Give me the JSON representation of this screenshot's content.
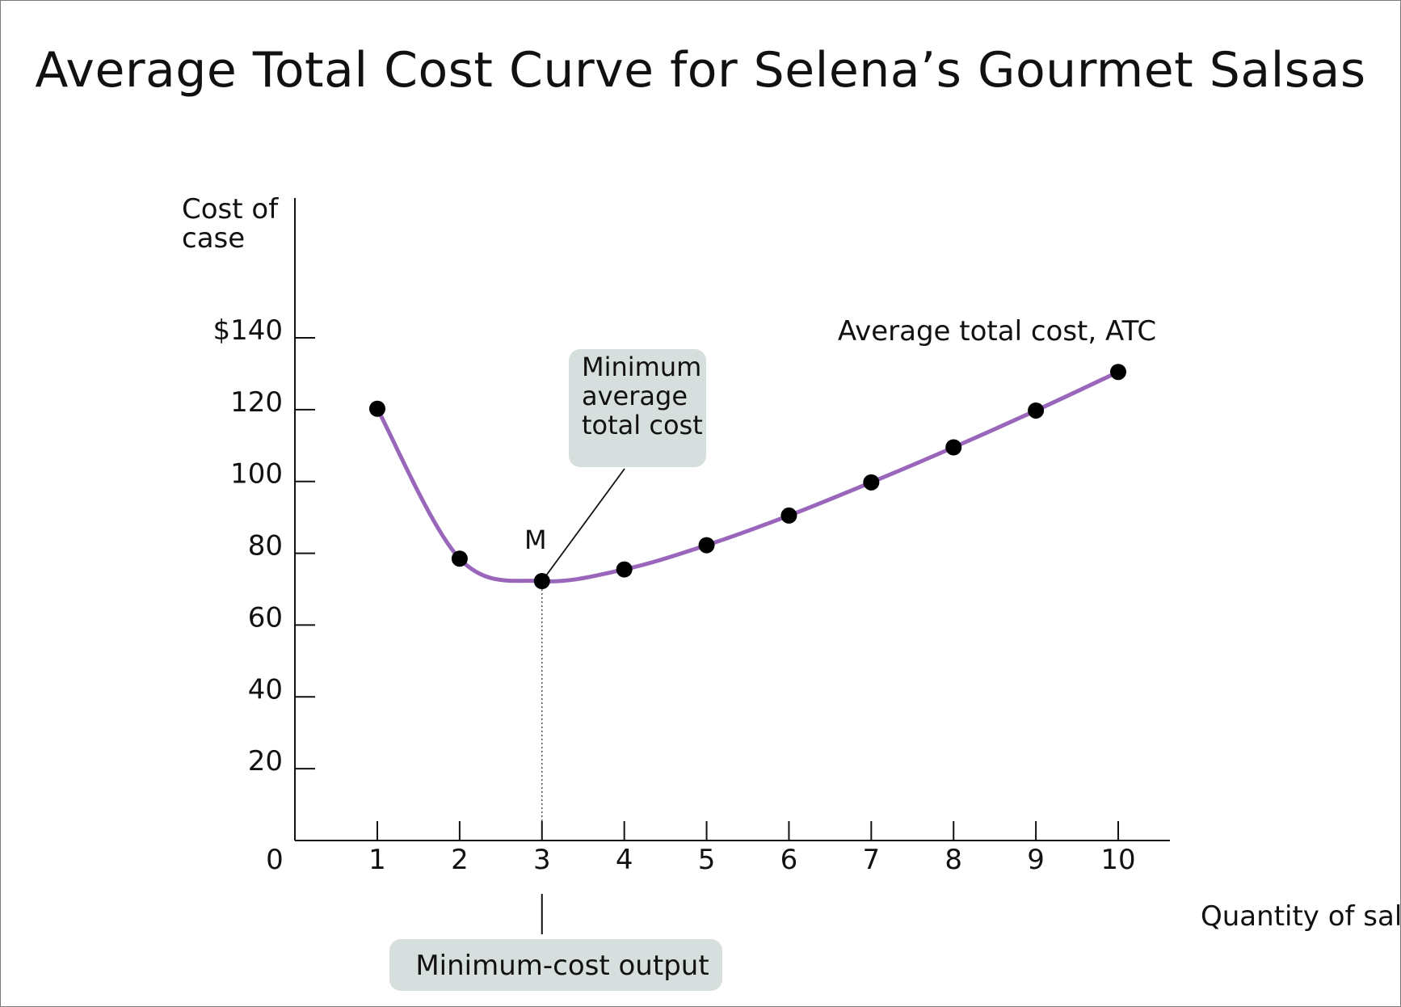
{
  "chart_data": {
    "type": "line",
    "title": "Average Total Cost Curve for Selena’s Gourmet Salsas",
    "ylabel": [
      "Cost of",
      "case"
    ],
    "xlabel": "Quantity of salsa (cases)",
    "origin_label": "0",
    "xlim": [
      0,
      10
    ],
    "ylim": [
      0,
      140
    ],
    "x_ticks": [
      "1",
      "2",
      "3",
      "4",
      "5",
      "6",
      "7",
      "8",
      "9",
      "10"
    ],
    "y_ticks": [
      {
        "value": 20,
        "label": "20"
      },
      {
        "value": 40,
        "label": "40"
      },
      {
        "value": 60,
        "label": "60"
      },
      {
        "value": 80,
        "label": "80"
      },
      {
        "value": 100,
        "label": "100"
      },
      {
        "value": 120,
        "label": "120"
      },
      {
        "value": 140,
        "label": "$140"
      }
    ],
    "series": [
      {
        "name": "Average total cost, ATC",
        "color": "#9966bb",
        "x": [
          1,
          2,
          3,
          4,
          5,
          6,
          7,
          8,
          9,
          10
        ],
        "y": [
          120.25,
          78.5,
          72.25,
          75.5,
          82.25,
          90.5,
          99.75,
          109.5,
          119.75,
          130.5
        ]
      }
    ],
    "annotations": {
      "point_label": "M",
      "min_avg_cost_label": [
        "Minimum",
        "average",
        "total cost"
      ],
      "min_cost_output_label": "Minimum-cost output"
    },
    "callout_color": "#d6dfdd",
    "grid": false
  }
}
